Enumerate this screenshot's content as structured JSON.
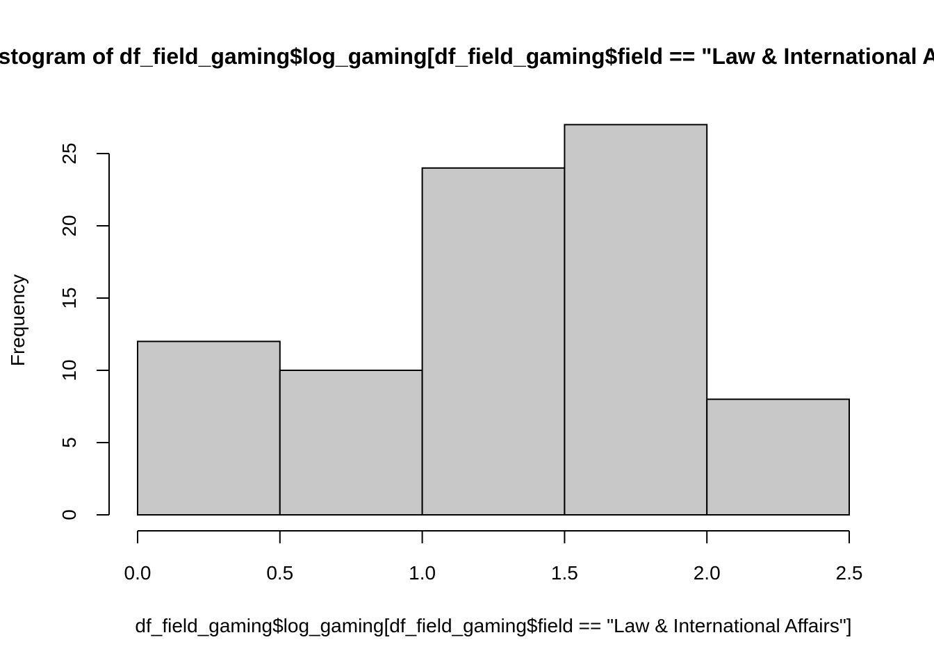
{
  "chart_data": {
    "type": "bar",
    "title": "Histogram of df_field_gaming$log_gaming[df_field_gaming$field == \"Law & International Affairs\"]",
    "xlabel": "df_field_gaming$log_gaming[df_field_gaming$field == \"Law & International Affairs\"]",
    "ylabel": "Frequency",
    "bins": [
      {
        "from": 0.0,
        "to": 0.5,
        "count": 12
      },
      {
        "from": 0.5,
        "to": 1.0,
        "count": 10
      },
      {
        "from": 1.0,
        "to": 1.5,
        "count": 24
      },
      {
        "from": 1.5,
        "to": 2.0,
        "count": 27
      },
      {
        "from": 2.0,
        "to": 2.5,
        "count": 8
      }
    ],
    "xticks": [
      "0.0",
      "0.5",
      "1.0",
      "1.5",
      "2.0",
      "2.5"
    ],
    "yticks": [
      "0",
      "5",
      "10",
      "15",
      "20",
      "25"
    ],
    "xlim": [
      0,
      2.5
    ],
    "ylim": [
      0,
      27
    ],
    "bar_color": "#c8c8c8",
    "grid": false
  }
}
